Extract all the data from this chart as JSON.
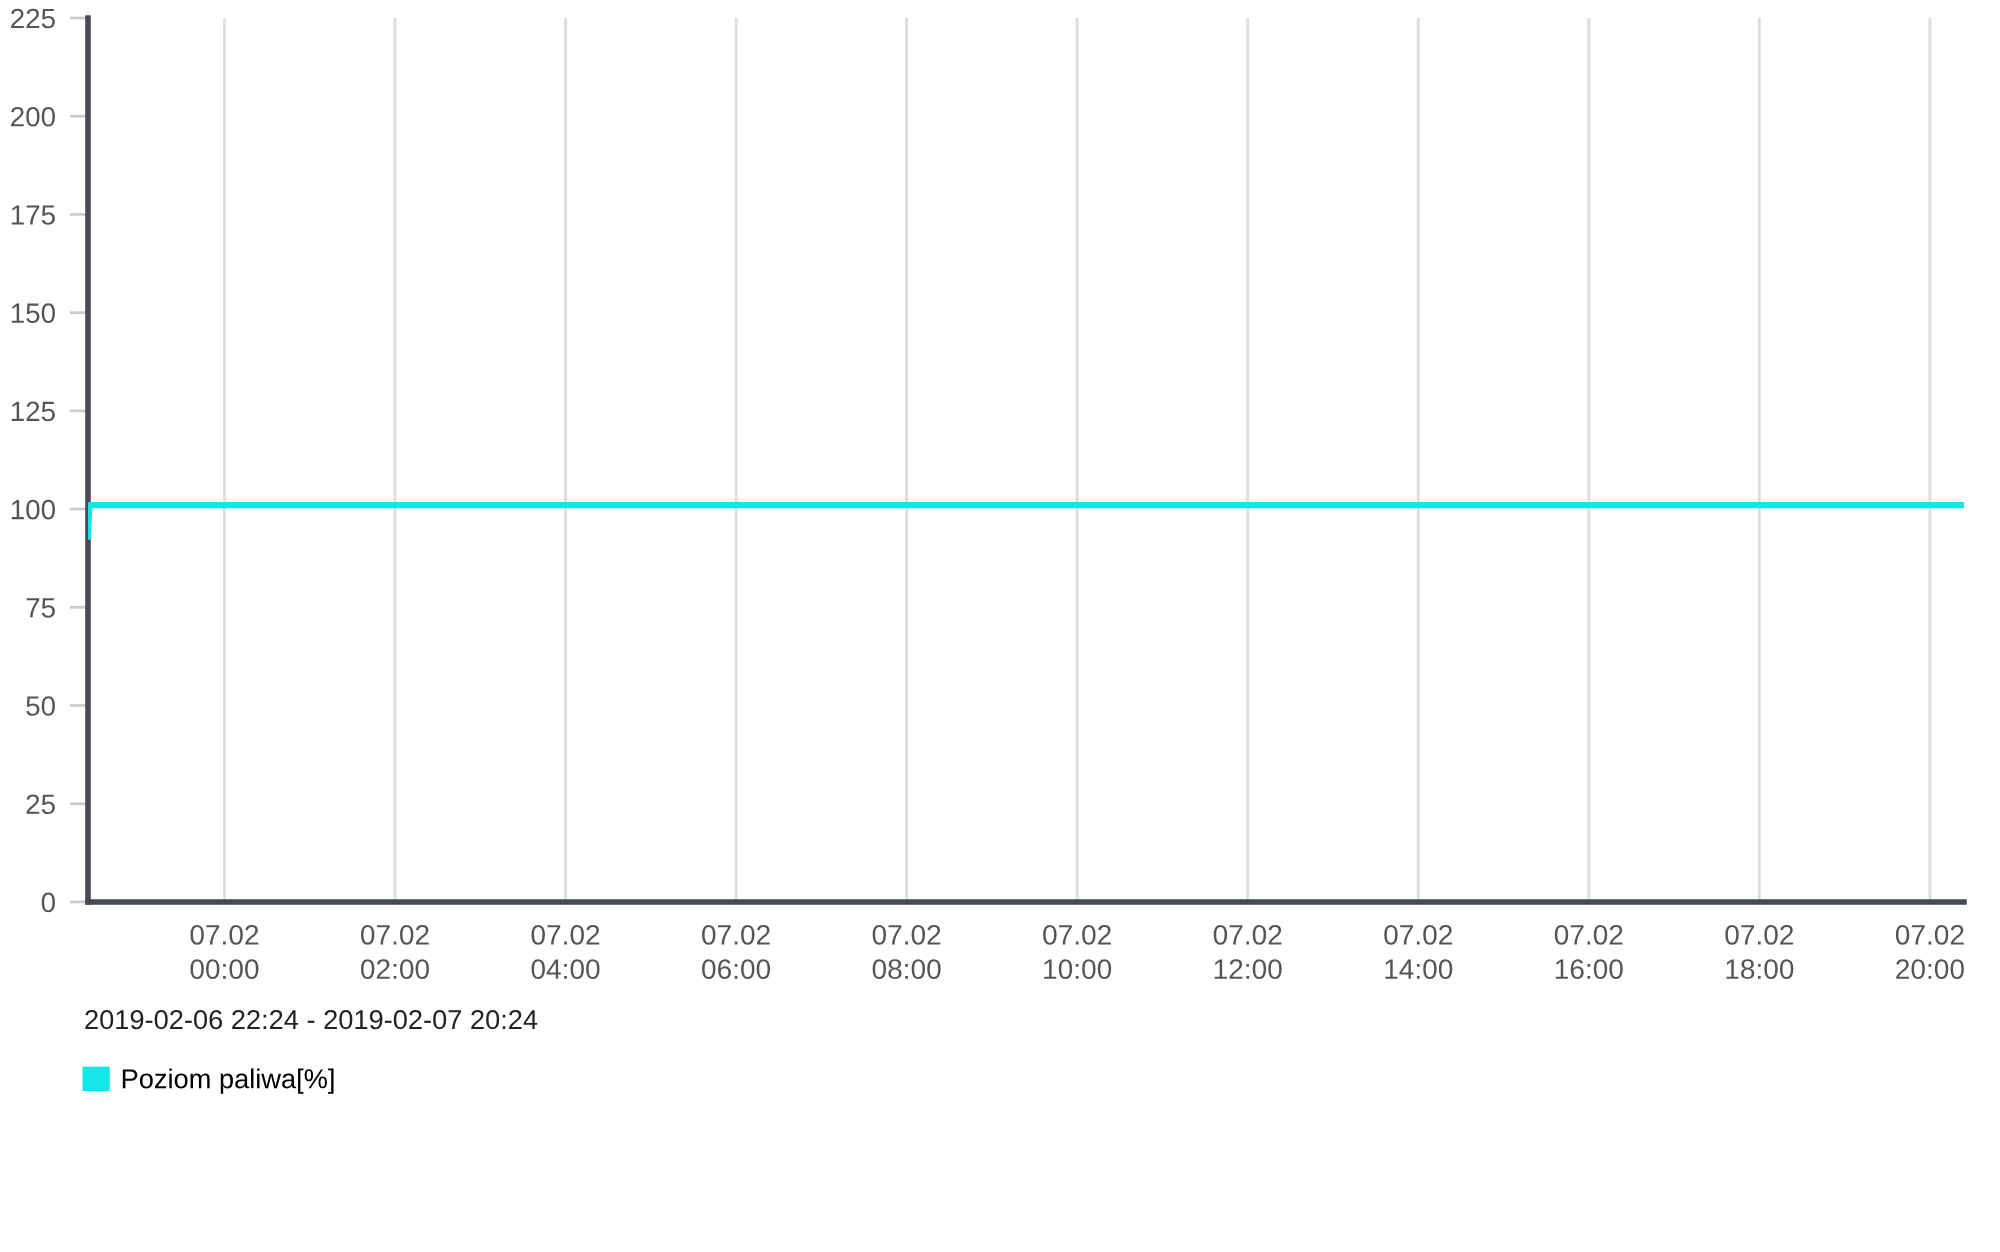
{
  "chart_data": {
    "type": "line",
    "annotations": [
      "2019-02-06 22:24 - 2019-02-07 20:24"
    ],
    "series": [
      {
        "name": "Poziom paliwa[%]",
        "color": "#12e6e6",
        "x": [
          "2019-02-06T22:24",
          "2019-02-06T22:25",
          "2019-02-07T20:23"
        ],
        "values": [
          93,
          101,
          101
        ]
      }
    ],
    "xlim": [
      "2019-02-06T22:24",
      "2019-02-07T20:24"
    ],
    "xticks": [
      {
        "value": "2019-02-07T00:00",
        "label": "07.02\n00:00"
      },
      {
        "value": "2019-02-07T02:00",
        "label": "07.02\n02:00"
      },
      {
        "value": "2019-02-07T04:00",
        "label": "07.02\n04:00"
      },
      {
        "value": "2019-02-07T06:00",
        "label": "07.02\n06:00"
      },
      {
        "value": "2019-02-07T08:00",
        "label": "07.02\n08:00"
      },
      {
        "value": "2019-02-07T10:00",
        "label": "07.02\n10:00"
      },
      {
        "value": "2019-02-07T12:00",
        "label": "07.02\n12:00"
      },
      {
        "value": "2019-02-07T14:00",
        "label": "07.02\n14:00"
      },
      {
        "value": "2019-02-07T16:00",
        "label": "07.02\n16:00"
      },
      {
        "value": "2019-02-07T18:00",
        "label": "07.02\n18:00"
      },
      {
        "value": "2019-02-07T20:00",
        "label": "07.02\n20:00"
      }
    ],
    "ylim": [
      0,
      225
    ],
    "yticks": [
      0,
      25,
      50,
      75,
      100,
      125,
      150,
      175,
      200,
      225
    ],
    "grid": "x",
    "legend": "bottom left",
    "line_style": "solid"
  }
}
